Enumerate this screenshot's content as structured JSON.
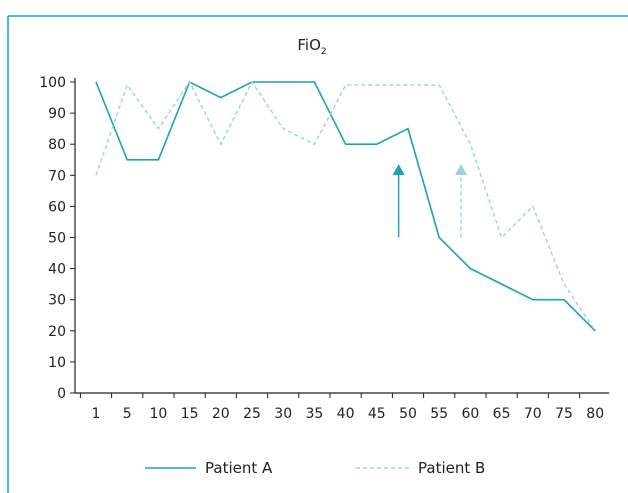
{
  "colors": {
    "border": "#1aa3b6",
    "axis": "#222222",
    "patient_a": "#1aa3b6",
    "patient_b": "#9dd1dc"
  },
  "chart_data": {
    "type": "line",
    "title_main": "FiO",
    "title_sub": "2",
    "x": [
      1,
      5,
      10,
      15,
      20,
      25,
      30,
      35,
      40,
      45,
      50,
      55,
      60,
      65,
      70,
      75,
      80
    ],
    "ylim": [
      0,
      100
    ],
    "yticks": [
      0,
      10,
      20,
      30,
      40,
      50,
      60,
      70,
      80,
      90,
      100
    ],
    "grid": false,
    "legend_position": "bottom",
    "series": [
      {
        "name": "Patient A",
        "style": "solid",
        "values": [
          100,
          75,
          75,
          100,
          95,
          100,
          100,
          100,
          80,
          80,
          85,
          50,
          40,
          35,
          30,
          30,
          20
        ]
      },
      {
        "name": "Patient B",
        "style": "dashed",
        "values": [
          70,
          99,
          85,
          100,
          80,
          100,
          85,
          80,
          99,
          99,
          99,
          99,
          80,
          50,
          60,
          35,
          20
        ]
      }
    ],
    "annotations": [
      {
        "type": "arrow",
        "series": "Patient A",
        "x": 48.5,
        "from_y": 50,
        "to_y": 73
      },
      {
        "type": "arrow",
        "series": "Patient B",
        "x": 58.5,
        "from_y": 50,
        "to_y": 73
      }
    ]
  }
}
